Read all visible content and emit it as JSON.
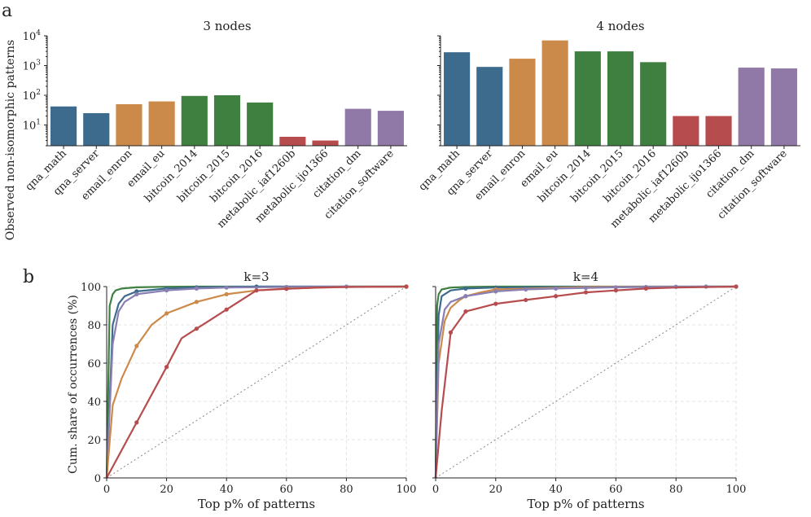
{
  "panel_labels": {
    "a": "a",
    "b": "b"
  },
  "chart_data": [
    {
      "type": "bar",
      "id": "a-left",
      "title": "3 nodes",
      "ylabel": "Observed non-isomorphic patterns",
      "yscale": "log",
      "ylim": [
        2,
        10000
      ],
      "yticks": [
        {
          "base": "10",
          "exp": "1",
          "value": 10
        },
        {
          "base": "10",
          "exp": "2",
          "value": 100
        },
        {
          "base": "10",
          "exp": "3",
          "value": 1000
        },
        {
          "base": "10",
          "exp": "4",
          "value": 10000
        }
      ],
      "categories": [
        "qna_math",
        "qna_server",
        "email_enron",
        "email_eu",
        "bitcoin_2014",
        "bitcoin_2015",
        "bitcoin_2016",
        "metabolic_iaf1260b",
        "metabolic_ijo1366",
        "citation_dm",
        "citation_software"
      ],
      "values": [
        42,
        25,
        50,
        62,
        95,
        100,
        57,
        4,
        3,
        35,
        30
      ],
      "colors": [
        "#3d6b8e",
        "#3d6b8e",
        "#cc8a4a",
        "#cc8a4a",
        "#3f8040",
        "#3f8040",
        "#3f8040",
        "#b74c4e",
        "#b74c4e",
        "#9079a6",
        "#9079a6"
      ]
    },
    {
      "type": "bar",
      "id": "a-right",
      "title": "4 nodes",
      "yscale": "log",
      "ylim": [
        2,
        10000
      ],
      "categories": [
        "qna_math",
        "qna_server",
        "email_enron",
        "email_eu",
        "bitcoin_2014",
        "bitcoin_2015",
        "bitcoin_2016",
        "metabolic_iaf1260b",
        "metabolic_ijo1366",
        "citation_dm",
        "citation_software"
      ],
      "values": [
        2800,
        900,
        1700,
        7000,
        3000,
        3000,
        1300,
        20,
        20,
        850,
        800
      ],
      "colors": [
        "#3d6b8e",
        "#3d6b8e",
        "#cc8a4a",
        "#cc8a4a",
        "#3f8040",
        "#3f8040",
        "#3f8040",
        "#b74c4e",
        "#b74c4e",
        "#9079a6",
        "#9079a6"
      ]
    },
    {
      "type": "line",
      "id": "b-left",
      "title": "k=3",
      "xlabel": "Top p% of patterns",
      "ylabel": "Cum. share of occurrences (%)",
      "xlim": [
        0,
        100
      ],
      "ylim": [
        0,
        100
      ],
      "xticks": [
        "0",
        "20",
        "40",
        "60",
        "80",
        "100"
      ],
      "yticks": [
        "0",
        "20",
        "40",
        "60",
        "80",
        "100"
      ],
      "series": [
        {
          "name": "green",
          "color": "#3f8040",
          "x": [
            0,
            1,
            2,
            3,
            5,
            10,
            20,
            30,
            50,
            100
          ],
          "y": [
            0,
            90,
            96,
            98,
            99,
            99.6,
            99.9,
            100,
            100,
            100
          ],
          "markers": []
        },
        {
          "name": "blue",
          "color": "#3d6b8e",
          "x": [
            0,
            2,
            4,
            6,
            10,
            20,
            30,
            50,
            100
          ],
          "y": [
            0,
            80,
            91,
            95,
            97.5,
            99,
            99.6,
            100,
            100
          ],
          "markers": [
            10,
            20,
            30,
            50,
            100
          ]
        },
        {
          "name": "purple",
          "color": "#8a7fb3",
          "x": [
            0,
            2,
            4,
            6,
            10,
            20,
            30,
            40,
            60,
            80,
            100
          ],
          "y": [
            0,
            70,
            87,
            92,
            96,
            98,
            99,
            99.5,
            99.8,
            100,
            100
          ],
          "markers": [
            10,
            20,
            30,
            40,
            60,
            80,
            100
          ]
        },
        {
          "name": "orange",
          "color": "#cc8a4a",
          "x": [
            0,
            2,
            5,
            10,
            15,
            20,
            30,
            40,
            50,
            60,
            80,
            100
          ],
          "y": [
            0,
            38,
            52,
            69,
            80,
            86,
            92,
            96,
            98,
            99,
            99.8,
            100
          ],
          "markers": [
            10,
            20,
            30,
            40,
            50,
            100
          ]
        },
        {
          "name": "red",
          "color": "#b74c4e",
          "x": [
            0,
            10,
            20,
            25,
            30,
            40,
            50,
            60,
            70,
            80,
            100
          ],
          "y": [
            0,
            29,
            58,
            73,
            78,
            88,
            98,
            98.8,
            99.5,
            99.8,
            100
          ],
          "markers": [
            10,
            20,
            30,
            40,
            50,
            60,
            100
          ]
        }
      ],
      "diagonal": true
    },
    {
      "type": "line",
      "id": "b-right",
      "title": "k=4",
      "xlabel": "Top p% of patterns",
      "xlim": [
        0,
        100
      ],
      "ylim": [
        0,
        100
      ],
      "xticks": [
        "0",
        "20",
        "40",
        "60",
        "80",
        "100"
      ],
      "series": [
        {
          "name": "green",
          "color": "#3f8040",
          "x": [
            0,
            0.5,
            1,
            2,
            5,
            10,
            20,
            50,
            100
          ],
          "y": [
            0,
            90,
            96,
            98.5,
            99.5,
            99.8,
            100,
            100,
            100
          ],
          "markers": []
        },
        {
          "name": "blue",
          "color": "#3d6b8e",
          "x": [
            0,
            1,
            2,
            5,
            10,
            20,
            50,
            100
          ],
          "y": [
            0,
            85,
            95,
            98,
            99,
            99.5,
            99.9,
            100
          ],
          "markers": [
            10,
            20
          ]
        },
        {
          "name": "orange",
          "color": "#cc8a4a",
          "x": [
            0,
            1,
            3,
            5,
            8,
            10,
            15,
            20,
            50,
            100
          ],
          "y": [
            0,
            60,
            82,
            89,
            93,
            95,
            97,
            98.5,
            99.8,
            100
          ],
          "markers": [
            10,
            20
          ]
        },
        {
          "name": "purple",
          "color": "#8a7fb3",
          "x": [
            0,
            1,
            3,
            5,
            10,
            20,
            30,
            40,
            50,
            60,
            70,
            80,
            90,
            100
          ],
          "y": [
            0,
            70,
            88,
            92,
            95,
            97.5,
            98.5,
            99,
            99.3,
            99.6,
            99.8,
            99.9,
            100,
            100
          ],
          "markers": [
            10,
            20,
            30,
            40,
            50,
            60,
            70,
            80,
            90,
            100
          ]
        },
        {
          "name": "red",
          "color": "#b74c4e",
          "x": [
            0,
            2,
            5,
            10,
            20,
            30,
            40,
            50,
            60,
            70,
            80,
            100
          ],
          "y": [
            0,
            35,
            76,
            87,
            91,
            93,
            95,
            97,
            98,
            99,
            99.5,
            100
          ],
          "markers": [
            5,
            10,
            20,
            30,
            40,
            50,
            60,
            70,
            100
          ]
        }
      ],
      "diagonal": true
    }
  ]
}
